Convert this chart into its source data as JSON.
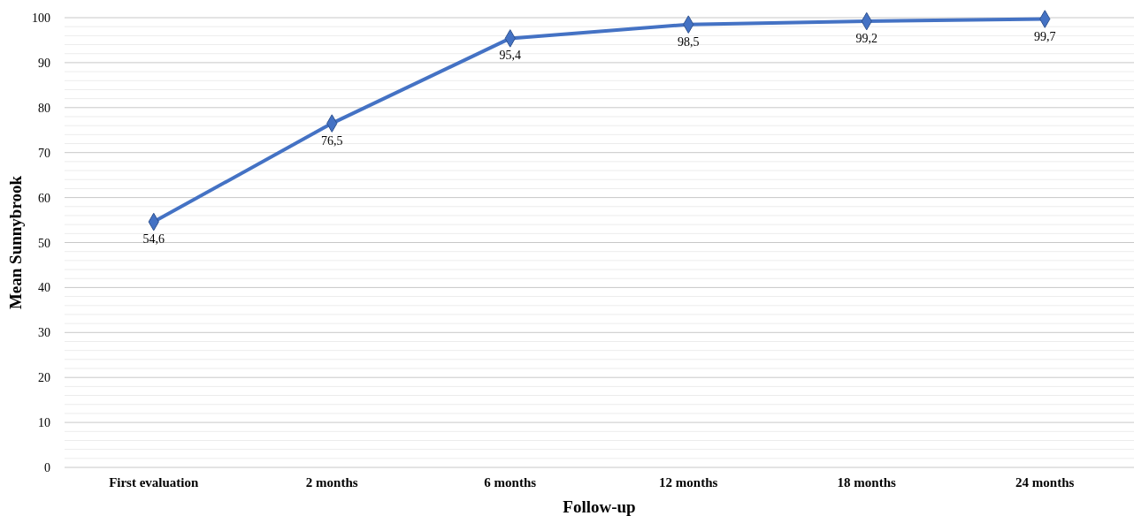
{
  "chart_data": {
    "type": "line",
    "xlabel": "Follow-up",
    "ylabel": "Mean Sunnybrook",
    "categories": [
      "First evaluation",
      "2 months",
      "6 months",
      "12 months",
      "18 months",
      "24 months"
    ],
    "series": [
      {
        "color": "#4472c4",
        "values": [
          54.6,
          76.5,
          95.4,
          98.5,
          99.2,
          99.7
        ],
        "value_labels": [
          "54,6",
          "76,5",
          "95,4",
          "98,5",
          "99,2",
          "99,7"
        ]
      }
    ],
    "ylim": [
      0,
      100
    ],
    "yticks": [
      0,
      {
        "value": 2,
        "label": null
      },
      {
        "value": 4,
        "label": null
      },
      {
        "value": 6,
        "label": null
      },
      {
        "value": 8,
        "label": null
      },
      10,
      {
        "value": 12,
        "label": null
      },
      {
        "value": 14,
        "label": null
      },
      {
        "value": 16,
        "label": null
      },
      {
        "value": 18,
        "label": null
      },
      20,
      {
        "value": 22,
        "label": null
      },
      {
        "value": 24,
        "label": null
      },
      {
        "value": 26,
        "label": null
      },
      {
        "value": 28,
        "label": null
      },
      30,
      {
        "value": 32,
        "label": null
      },
      {
        "value": 34,
        "label": null
      },
      {
        "value": 36,
        "label": null
      },
      {
        "value": 38,
        "label": null
      },
      40,
      {
        "value": 42,
        "label": null
      },
      {
        "value": 44,
        "label": null
      },
      {
        "value": 46,
        "label": null
      },
      {
        "value": 48,
        "label": null
      },
      50,
      {
        "value": 52,
        "label": null
      },
      {
        "value": 54,
        "label": null
      },
      {
        "value": 56,
        "label": null
      },
      {
        "value": 58,
        "label": null
      },
      60,
      {
        "value": 62,
        "label": null
      },
      {
        "value": 64,
        "label": null
      },
      {
        "value": 66,
        "label": null
      },
      {
        "value": 68,
        "label": null
      },
      70,
      {
        "value": 72,
        "label": null
      },
      {
        "value": 74,
        "label": null
      },
      {
        "value": 76,
        "label": null
      },
      {
        "value": 78,
        "label": null
      },
      80,
      {
        "value": 82,
        "label": null
      },
      {
        "value": 84,
        "label": null
      },
      {
        "value": 86,
        "label": null
      },
      {
        "value": 88,
        "label": null
      },
      90,
      {
        "value": 92,
        "label": null
      },
      {
        "value": 94,
        "label": null
      },
      {
        "value": 96,
        "label": null
      },
      {
        "value": 98,
        "label": null
      },
      100
    ],
    "grid": "y",
    "marker": "diamond",
    "line_style": "solid"
  }
}
